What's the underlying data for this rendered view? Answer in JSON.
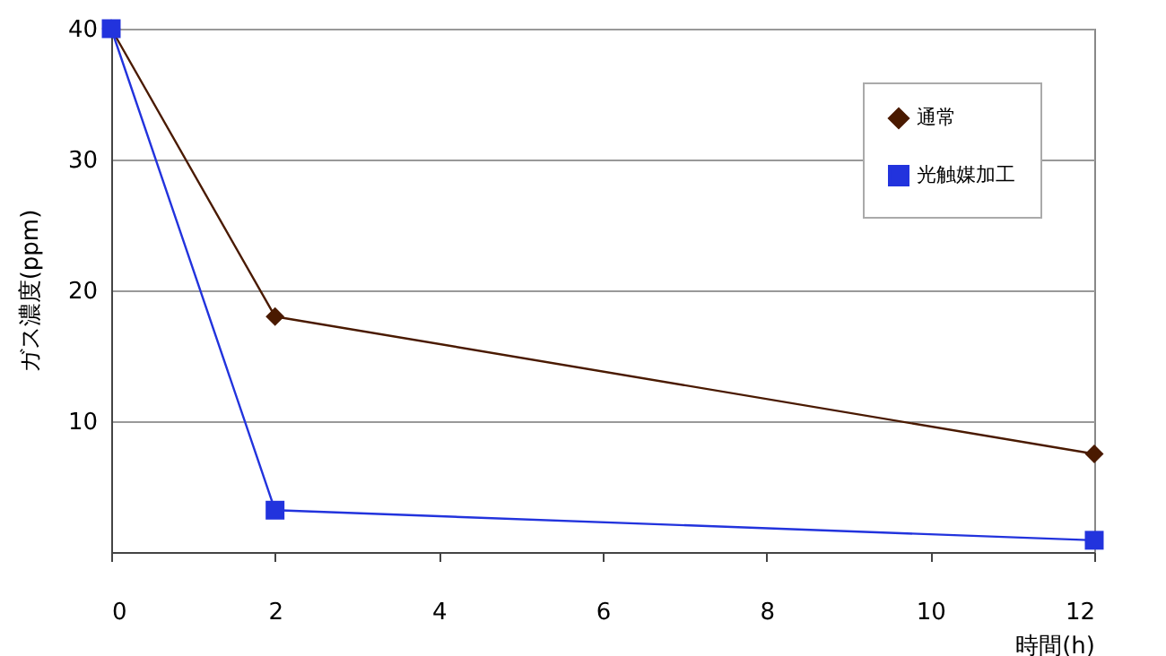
{
  "chart_data": {
    "type": "line",
    "xlabel": "時間(h)",
    "ylabel": "ガス濃度(ppm)",
    "x": [
      0,
      2,
      12
    ],
    "series": [
      {
        "name": "通常",
        "color": "#4a1a00",
        "marker": "diamond",
        "values": [
          40,
          18,
          7.5
        ]
      },
      {
        "name": "光触媒加工",
        "color": "#2233dd",
        "marker": "square",
        "values": [
          40,
          3.2,
          0.9
        ]
      }
    ],
    "xlim": [
      0,
      12
    ],
    "xticks": [
      0,
      2,
      4,
      6,
      8,
      10,
      12
    ],
    "ylim": [
      0,
      40
    ],
    "yticks": [
      10,
      20,
      30,
      40
    ],
    "grid": "y",
    "legend": "top right"
  }
}
